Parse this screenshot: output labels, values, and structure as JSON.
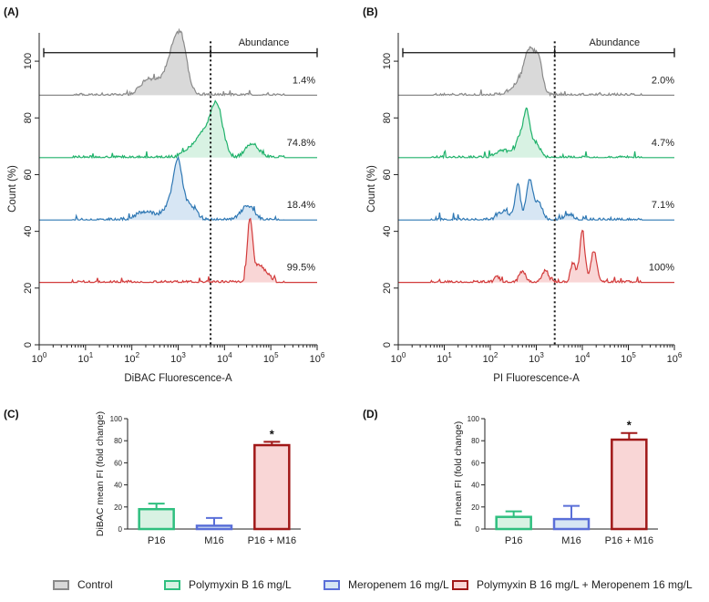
{
  "colors": {
    "control": "#8a8a8a",
    "control_fill": "#d9d9d9",
    "polymyxin": "#20b26b",
    "polymyxin_fill": "#d8f2e3",
    "meropenem": "#2f78b4",
    "meropenem_fill": "#d7e6f4",
    "combo": "#d23b3b",
    "combo_fill": "#f9d6d6",
    "bar_P16": "#2fbf7f",
    "bar_M16": "#5a6fd8",
    "bar_combo": "#a01818"
  },
  "legend": [
    {
      "label": "Control",
      "color_key": "control",
      "fill_key": "control_fill"
    },
    {
      "label": "Polymyxin B 16 mg/L",
      "color_key": "bar_P16",
      "fill_key": "polymyxin_fill"
    },
    {
      "label": "Meropenem 16 mg/L",
      "color_key": "bar_M16",
      "fill_key": "meropenem_fill"
    },
    {
      "label": "Polymyxin B 16 mg/L + Meropenem 16 mg/L",
      "color_key": "bar_combo",
      "fill_key": "combo_fill"
    }
  ],
  "chart_data": [
    {
      "panel": "(A)",
      "type": "area",
      "xlabel": "DiBAC Fluorescence-A",
      "ylabel": "Count (%)",
      "xscale": "log",
      "xlim_exp": [
        0,
        6
      ],
      "ylim": [
        0,
        110
      ],
      "yticks": [
        0,
        20,
        40,
        60,
        80,
        100
      ],
      "gate_log10": 3.7,
      "gate_label": "Abundance",
      "series": [
        {
          "color_key": "control",
          "fill_key": "control_fill",
          "baseline": 88,
          "annotation": "1.4%",
          "peaks": [
            [
              2.7,
              5,
              0.45
            ],
            [
              2.95,
              14,
              0.22
            ],
            [
              3.1,
              9,
              0.15
            ],
            [
              2.3,
              3,
              0.2
            ]
          ]
        },
        {
          "color_key": "polymyxin",
          "fill_key": "polymyxin_fill",
          "baseline": 66,
          "annotation": "74.8%",
          "peaks": [
            [
              3.55,
              9,
              0.22
            ],
            [
              3.8,
              15,
              0.15
            ],
            [
              3.95,
              6,
              0.15
            ],
            [
              4.6,
              5,
              0.2
            ],
            [
              3.2,
              2.5,
              0.2
            ]
          ]
        },
        {
          "color_key": "meropenem",
          "fill_key": "meropenem_fill",
          "baseline": 44,
          "annotation": "18.4%",
          "peaks": [
            [
              2.9,
              8,
              0.22
            ],
            [
              3.0,
              14,
              0.12
            ],
            [
              3.25,
              5,
              0.2
            ],
            [
              4.5,
              5,
              0.2
            ],
            [
              2.3,
              3,
              0.3
            ]
          ]
        },
        {
          "color_key": "combo",
          "fill_key": "combo_fill",
          "baseline": 22,
          "annotation": "99.5%",
          "peaks": [
            [
              4.55,
              22,
              0.08
            ],
            [
              4.75,
              6,
              0.15
            ],
            [
              4.95,
              2,
              0.12
            ]
          ]
        }
      ]
    },
    {
      "panel": "(B)",
      "type": "area",
      "xlabel": "PI Fluorescence-A",
      "ylabel": "Count (%)",
      "xscale": "log",
      "xlim_exp": [
        0,
        6
      ],
      "ylim": [
        0,
        110
      ],
      "yticks": [
        0,
        20,
        40,
        60,
        80,
        100
      ],
      "gate_log10": 3.4,
      "gate_label": "Abundance",
      "series": [
        {
          "color_key": "control",
          "fill_key": "control_fill",
          "baseline": 88,
          "annotation": "2.0%",
          "peaks": [
            [
              2.7,
              5,
              0.3
            ],
            [
              2.85,
              12,
              0.15
            ],
            [
              3.05,
              11,
              0.12
            ]
          ]
        },
        {
          "color_key": "polymyxin",
          "fill_key": "polymyxin_fill",
          "baseline": 66,
          "annotation": "4.7%",
          "peaks": [
            [
              2.65,
              7,
              0.12
            ],
            [
              2.8,
              15,
              0.1
            ],
            [
              3.0,
              5,
              0.12
            ],
            [
              2.3,
              2.5,
              0.25
            ]
          ]
        },
        {
          "color_key": "meropenem",
          "fill_key": "meropenem_fill",
          "baseline": 44,
          "annotation": "7.1%",
          "peaks": [
            [
              2.6,
              12,
              0.08
            ],
            [
              2.85,
              14,
              0.1
            ],
            [
              3.05,
              6,
              0.12
            ],
            [
              2.3,
              3,
              0.2
            ],
            [
              3.7,
              2,
              0.15
            ]
          ]
        },
        {
          "color_key": "combo",
          "fill_key": "combo_fill",
          "baseline": 22,
          "annotation": "100%",
          "peaks": [
            [
              2.7,
              4,
              0.1
            ],
            [
              3.2,
              4,
              0.1
            ],
            [
              3.8,
              7,
              0.08
            ],
            [
              4.0,
              18,
              0.08
            ],
            [
              4.25,
              11,
              0.09
            ],
            [
              2.15,
              2,
              0.08
            ]
          ]
        }
      ]
    },
    {
      "panel": "(C)",
      "type": "bar",
      "ylabel": "DiBAC mean FI (fold change)",
      "ylim": [
        0,
        100
      ],
      "yticks": [
        0,
        20,
        40,
        60,
        80,
        100
      ],
      "categories": [
        "P16",
        "M16",
        "P16 + M16"
      ],
      "values": [
        18,
        3,
        76
      ],
      "errors": [
        5,
        7,
        3
      ],
      "significance": [
        "",
        "",
        "*"
      ]
    },
    {
      "panel": "(D)",
      "type": "bar",
      "ylabel": "PI mean FI (fold change)",
      "ylim": [
        0,
        100
      ],
      "yticks": [
        0,
        20,
        40,
        60,
        80,
        100
      ],
      "categories": [
        "P16",
        "M16",
        "P16 + M16"
      ],
      "values": [
        11,
        9,
        81
      ],
      "errors": [
        5,
        12,
        6
      ],
      "significance": [
        "",
        "",
        "*"
      ]
    }
  ]
}
